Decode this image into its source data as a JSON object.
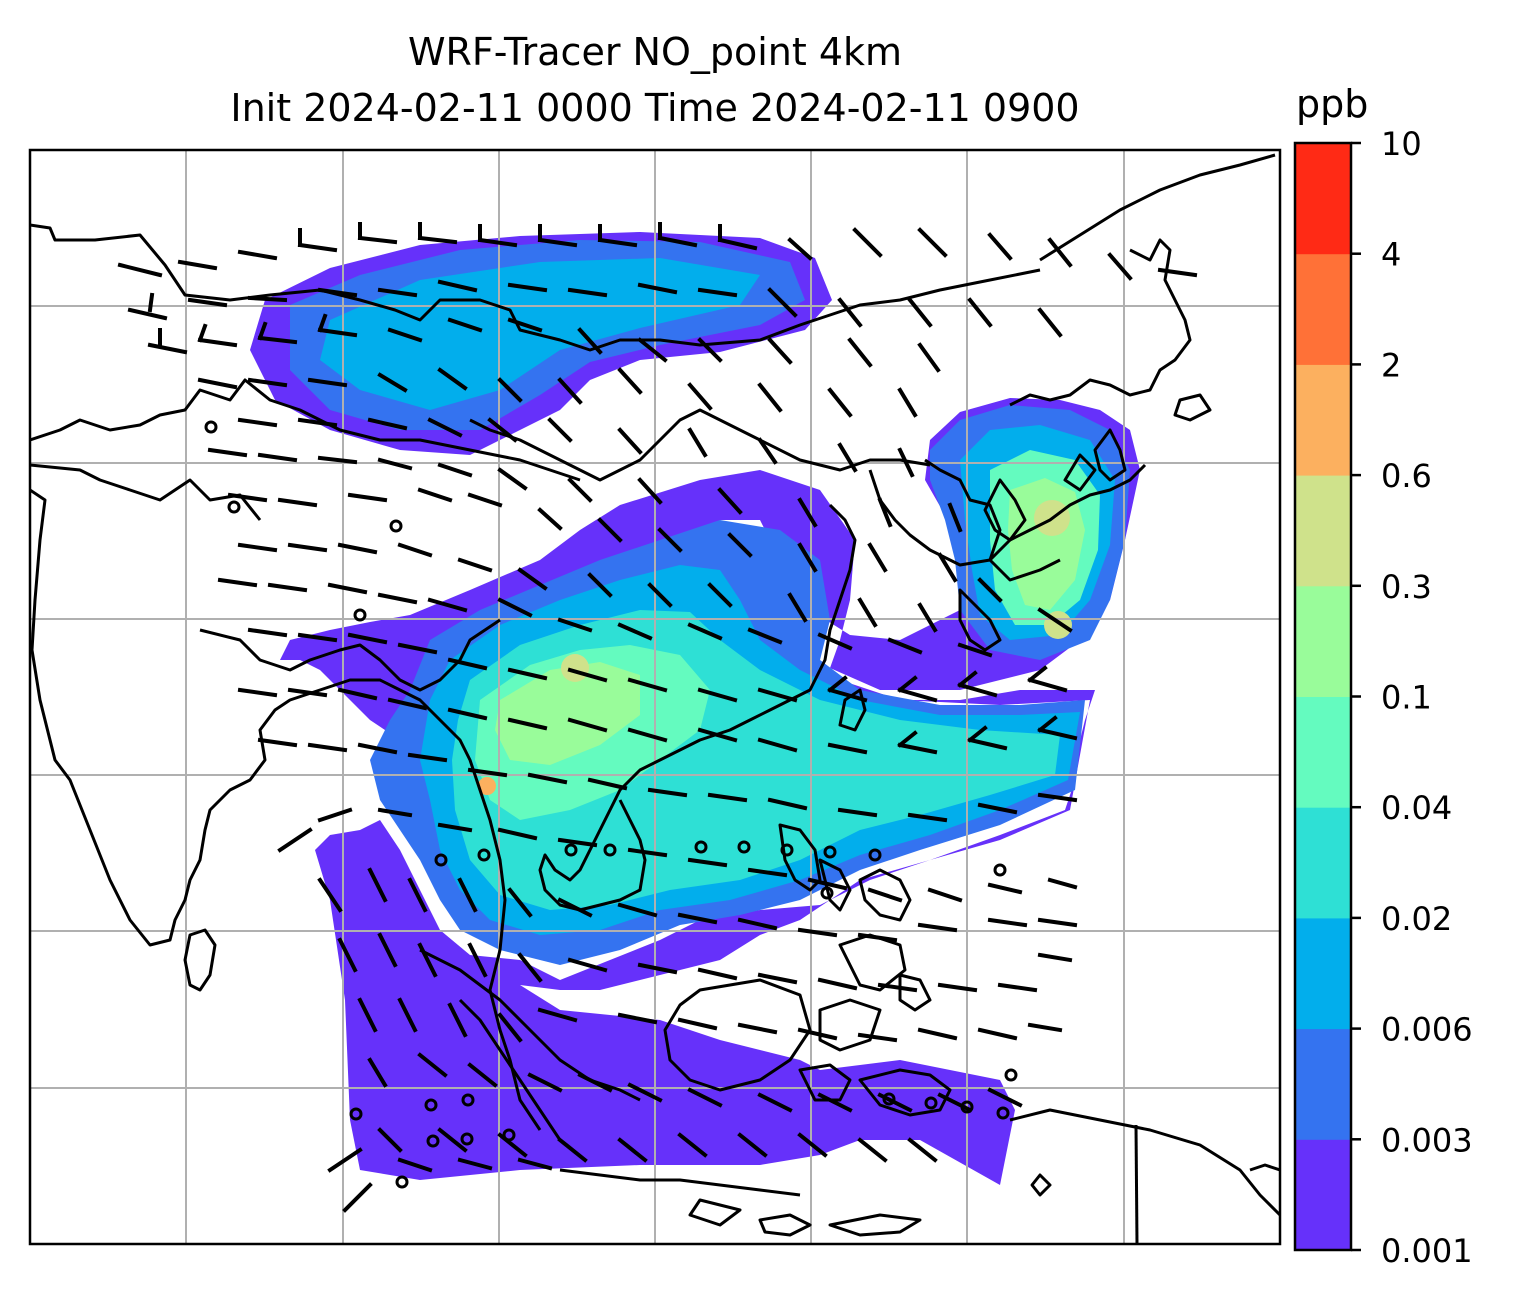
{
  "title_line1": "WRF-Tracer NO_point 4km",
  "title_line2": "Init 2024-02-11 0000 Time 2024-02-11 0900",
  "colorbar": {
    "unit": "ppb",
    "levels": [
      "0.001",
      "0.003",
      "0.006",
      "0.02",
      "0.04",
      "0.1",
      "0.3",
      "0.6",
      "2",
      "4",
      "10"
    ],
    "colors": [
      "#6631fa",
      "#3473f0",
      "#02aeec",
      "#2ee0d5",
      "#64fbbf",
      "#99fc9a",
      "#cfe28b",
      "#fcb05f",
      "#ff7137",
      "#ff2a15"
    ]
  },
  "colors": {
    "coastline": "#000000",
    "gridlines": "#b0b0b0",
    "wind_barbs": "#000000",
    "frame": "#000000"
  }
}
